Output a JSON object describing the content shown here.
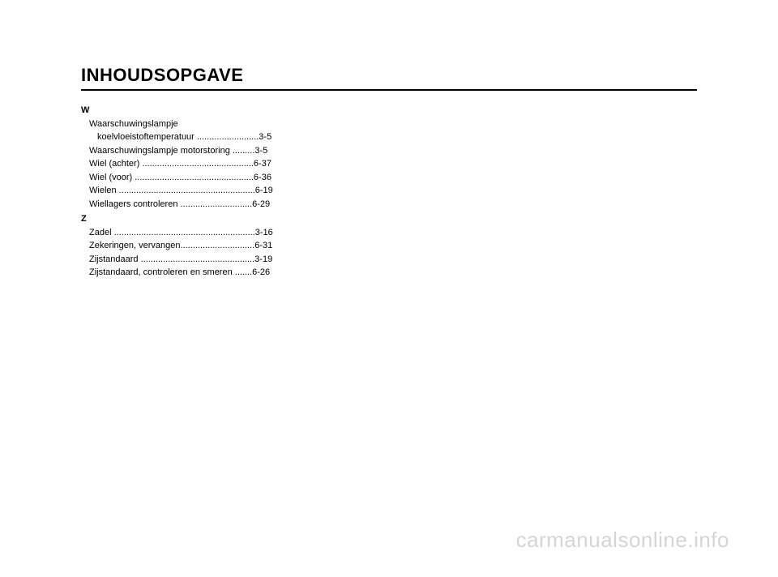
{
  "title": "INHOUDSOPGAVE",
  "sections": {
    "W": {
      "letter": "W",
      "entries": {
        "e0_line1": "Waarschuwingslampje",
        "e0_line2": "koelvloeistoftemperatuur .........................3-5",
        "e1": "Waarschuwingslampje motorstoring .........3-5",
        "e2": "Wiel (achter) .............................................6-37",
        "e3": "Wiel (voor) ................................................6-36",
        "e4": "Wielen .......................................................6-19",
        "e5": "Wiellagers controleren .............................6-29"
      }
    },
    "Z": {
      "letter": "Z",
      "entries": {
        "e0": "Zadel .........................................................3-16",
        "e1": "Zekeringen, vervangen..............................6-31",
        "e2": "Zijstandaard ..............................................3-19",
        "e3": "Zijstandaard, controleren en smeren .......6-26"
      }
    }
  },
  "watermark": "carmanualsonline.info"
}
